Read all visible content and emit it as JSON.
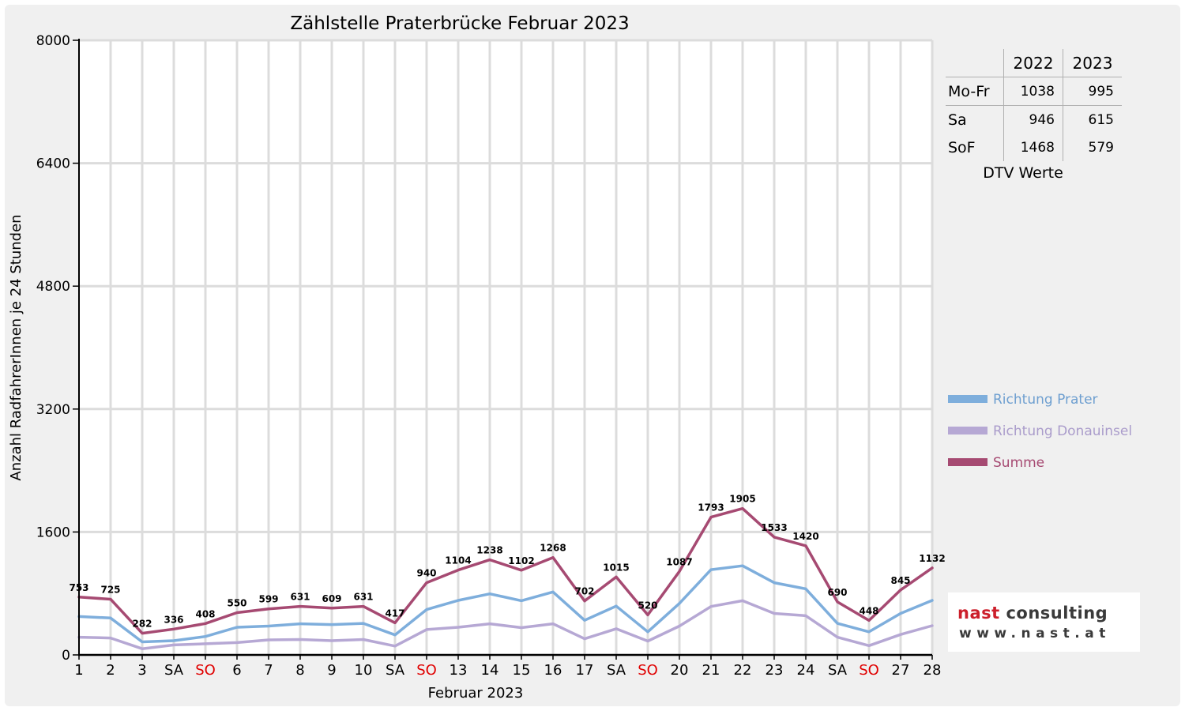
{
  "chart_data": {
    "type": "line",
    "title": "Zählstelle Praterbrücke Februar 2023",
    "xlabel": "Februar 2023",
    "ylabel": "Anzahl RadfahrerInnen je 24 Stunden",
    "ylim": [
      0,
      8000
    ],
    "yticks": [
      0,
      1600,
      3200,
      4800,
      6400,
      8000
    ],
    "grid": true,
    "legend_position": "right",
    "categories": [
      "1",
      "2",
      "3",
      "SA",
      "SO",
      "6",
      "7",
      "8",
      "9",
      "10",
      "SA",
      "SO",
      "13",
      "14",
      "15",
      "16",
      "17",
      "SA",
      "SO",
      "20",
      "21",
      "22",
      "23",
      "24",
      "SA",
      "SO",
      "27",
      "28"
    ],
    "red_categories": [
      4,
      11,
      18,
      25
    ],
    "series": [
      {
        "name": "Richtung Prater",
        "color": "#7eaedc",
        "values": [
          500,
          480,
          170,
          185,
          240,
          360,
          375,
          405,
          395,
          410,
          260,
          590,
          710,
          795,
          705,
          820,
          450,
          635,
          300,
          670,
          1110,
          1160,
          940,
          860,
          410,
          300,
          540,
          710
        ]
      },
      {
        "name": "Richtung Donauinsel",
        "color": "#b6a8d4",
        "values": [
          230,
          220,
          80,
          130,
          145,
          160,
          195,
          200,
          185,
          200,
          115,
          330,
          360,
          405,
          355,
          405,
          210,
          340,
          180,
          375,
          630,
          705,
          540,
          510,
          230,
          120,
          265,
          380
        ]
      },
      {
        "name": "Summe",
        "color": "#a64a72",
        "values": [
          753,
          725,
          282,
          336,
          408,
          550,
          599,
          631,
          609,
          631,
          417,
          940,
          1104,
          1238,
          1102,
          1268,
          702,
          1015,
          520,
          1087,
          1793,
          1905,
          1533,
          1420,
          690,
          448,
          845,
          1132
        ]
      }
    ],
    "data_labels": [
      "753",
      "725",
      "282",
      "336",
      "408",
      "550",
      "599",
      "631",
      "609",
      "631",
      "417",
      "940",
      "1104",
      "1238",
      "1102",
      "1268",
      "702",
      "1015",
      "520",
      "1087",
      "1793",
      "1905",
      "1533",
      "1420",
      "690",
      "448",
      "845",
      "1132"
    ]
  },
  "dtv_table": {
    "years": [
      "2022",
      "2023"
    ],
    "rows": [
      {
        "label": "Mo-Fr",
        "v2022": "1038",
        "v2023": "995"
      },
      {
        "label": "Sa",
        "v2022": "946",
        "v2023": "615"
      },
      {
        "label": "SoF",
        "v2022": "1468",
        "v2023": "579"
      }
    ],
    "caption": "DTV Werte"
  },
  "logo": {
    "word1": "nast",
    "word2": "consulting",
    "url": "www.nast.at",
    "color_primary": "#cc1f2b",
    "color_secondary": "#3a3a3a"
  }
}
